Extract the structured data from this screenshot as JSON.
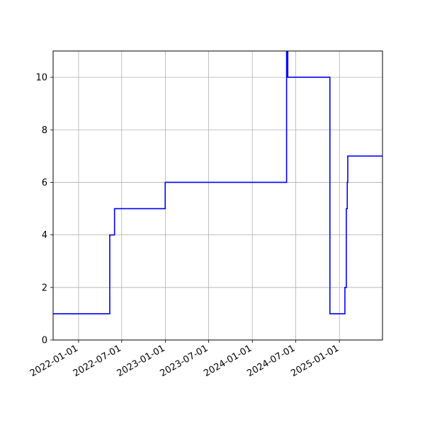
{
  "chart_data": {
    "type": "line",
    "step": "post",
    "title": "",
    "xlabel": "",
    "ylabel": "",
    "xlim": [
      "2021-09-16",
      "2025-07-01"
    ],
    "ylim": [
      0,
      11
    ],
    "grid": true,
    "x_ticks": [
      "2022-01-01",
      "2022-07-01",
      "2023-01-01",
      "2023-07-01",
      "2024-01-01",
      "2024-07-01",
      "2025-01-01"
    ],
    "y_ticks": [
      "0",
      "2",
      "4",
      "6",
      "8",
      "10"
    ],
    "series": [
      {
        "color": "#0000ff",
        "points": [
          {
            "x": "2021-09-16",
            "y": 1
          },
          {
            "x": "2022-05-12",
            "y": 4
          },
          {
            "x": "2022-06-01",
            "y": 5
          },
          {
            "x": "2022-12-31",
            "y": 6
          },
          {
            "x": "2024-05-24",
            "y": 11
          },
          {
            "x": "2024-05-29",
            "y": 10
          },
          {
            "x": "2024-11-22",
            "y": 1
          },
          {
            "x": "2025-01-24",
            "y": 2
          },
          {
            "x": "2025-01-30",
            "y": 5
          },
          {
            "x": "2025-02-03",
            "y": 6
          },
          {
            "x": "2025-02-05",
            "y": 7
          },
          {
            "x": "2025-07-01",
            "y": 7
          }
        ]
      }
    ]
  }
}
